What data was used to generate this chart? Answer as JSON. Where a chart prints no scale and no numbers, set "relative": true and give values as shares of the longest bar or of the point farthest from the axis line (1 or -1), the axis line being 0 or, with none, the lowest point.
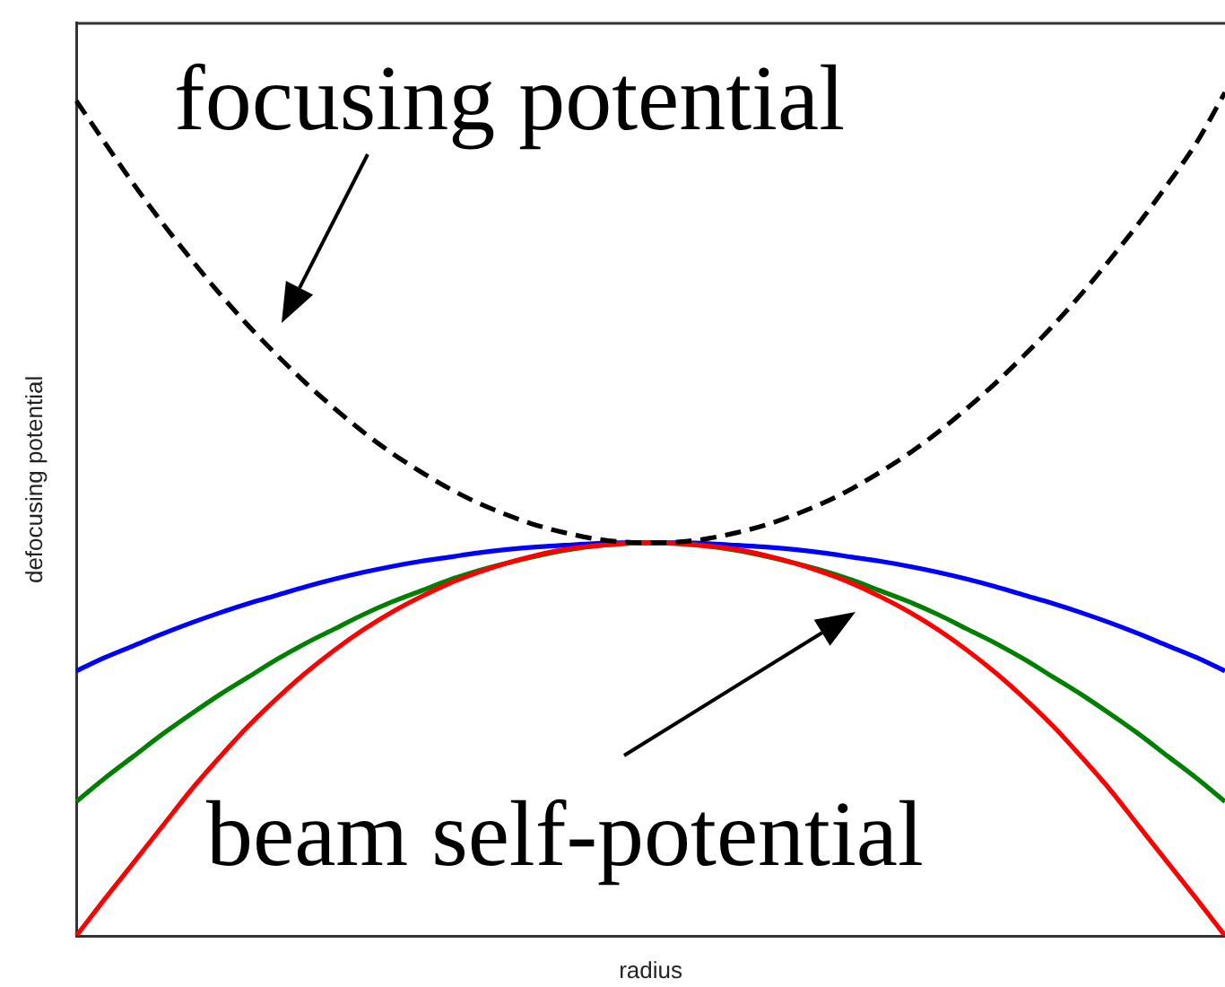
{
  "chart_data": {
    "type": "line",
    "xlabel": "radius",
    "ylabel": "defocusing potential",
    "relative": true,
    "marker": "none",
    "categories": [
      null,
      null,
      null,
      null,
      null,
      null,
      null,
      null,
      null,
      null,
      null,
      null,
      null,
      null,
      null,
      null,
      null,
      null,
      null,
      null,
      null,
      null,
      null,
      null,
      null,
      null,
      null,
      null,
      null,
      null,
      null,
      null,
      null,
      null,
      null,
      null,
      null,
      null,
      null,
      null,
      null
    ],
    "series": [
      {
        "color": "#0000ff",
        "values": [
          0.314,
          0.33,
          0.344,
          0.358,
          0.371,
          0.383,
          0.394,
          0.404,
          0.414,
          0.423,
          0.431,
          0.438,
          0.444,
          0.449,
          0.454,
          0.458,
          0.461,
          0.463,
          0.465,
          0.466,
          0.466,
          0.466,
          0.465,
          0.463,
          0.461,
          0.458,
          0.454,
          0.449,
          0.444,
          0.438,
          0.431,
          0.423,
          0.414,
          0.404,
          0.394,
          0.383,
          0.371,
          0.358,
          0.344,
          0.33,
          0.314
        ]
      },
      {
        "color": "#008000",
        "values": [
          0.159,
          0.187,
          0.213,
          0.239,
          0.263,
          0.286,
          0.307,
          0.328,
          0.347,
          0.364,
          0.381,
          0.396,
          0.409,
          0.422,
          0.433,
          0.442,
          0.45,
          0.457,
          0.462,
          0.465,
          0.466,
          0.465,
          0.462,
          0.457,
          0.45,
          0.442,
          0.433,
          0.422,
          0.409,
          0.396,
          0.381,
          0.364,
          0.347,
          0.328,
          0.307,
          0.286,
          0.263,
          0.239,
          0.213,
          0.187,
          0.159
        ]
      },
      {
        "color": "#ff0000",
        "values": [
          0,
          0.044,
          0.087,
          0.13,
          0.173,
          0.212,
          0.249,
          0.282,
          0.312,
          0.339,
          0.363,
          0.384,
          0.402,
          0.418,
          0.431,
          0.442,
          0.451,
          0.458,
          0.462,
          0.465,
          0.466,
          0.465,
          0.462,
          0.458,
          0.451,
          0.442,
          0.431,
          0.418,
          0.402,
          0.384,
          0.363,
          0.339,
          0.312,
          0.282,
          0.249,
          0.212,
          0.173,
          0.13,
          0.087,
          0.044,
          0
        ]
      },
      {
        "color": "#000000",
        "line_style": "dashed",
        "values": [
          0.99,
          0.94,
          0.891,
          0.845,
          0.802,
          0.761,
          0.723,
          0.688,
          0.655,
          0.625,
          0.597,
          0.572,
          0.55,
          0.53,
          0.513,
          0.499,
          0.487,
          0.478,
          0.471,
          0.467,
          0.466,
          0.467,
          0.471,
          0.478,
          0.487,
          0.499,
          0.513,
          0.53,
          0.55,
          0.572,
          0.597,
          0.625,
          0.655,
          0.688,
          0.723,
          0.761,
          0.802,
          0.845,
          0.891,
          0.94,
          1.0
        ]
      }
    ],
    "annotations": [
      "focusing potential",
      "beam self-potential"
    ]
  }
}
